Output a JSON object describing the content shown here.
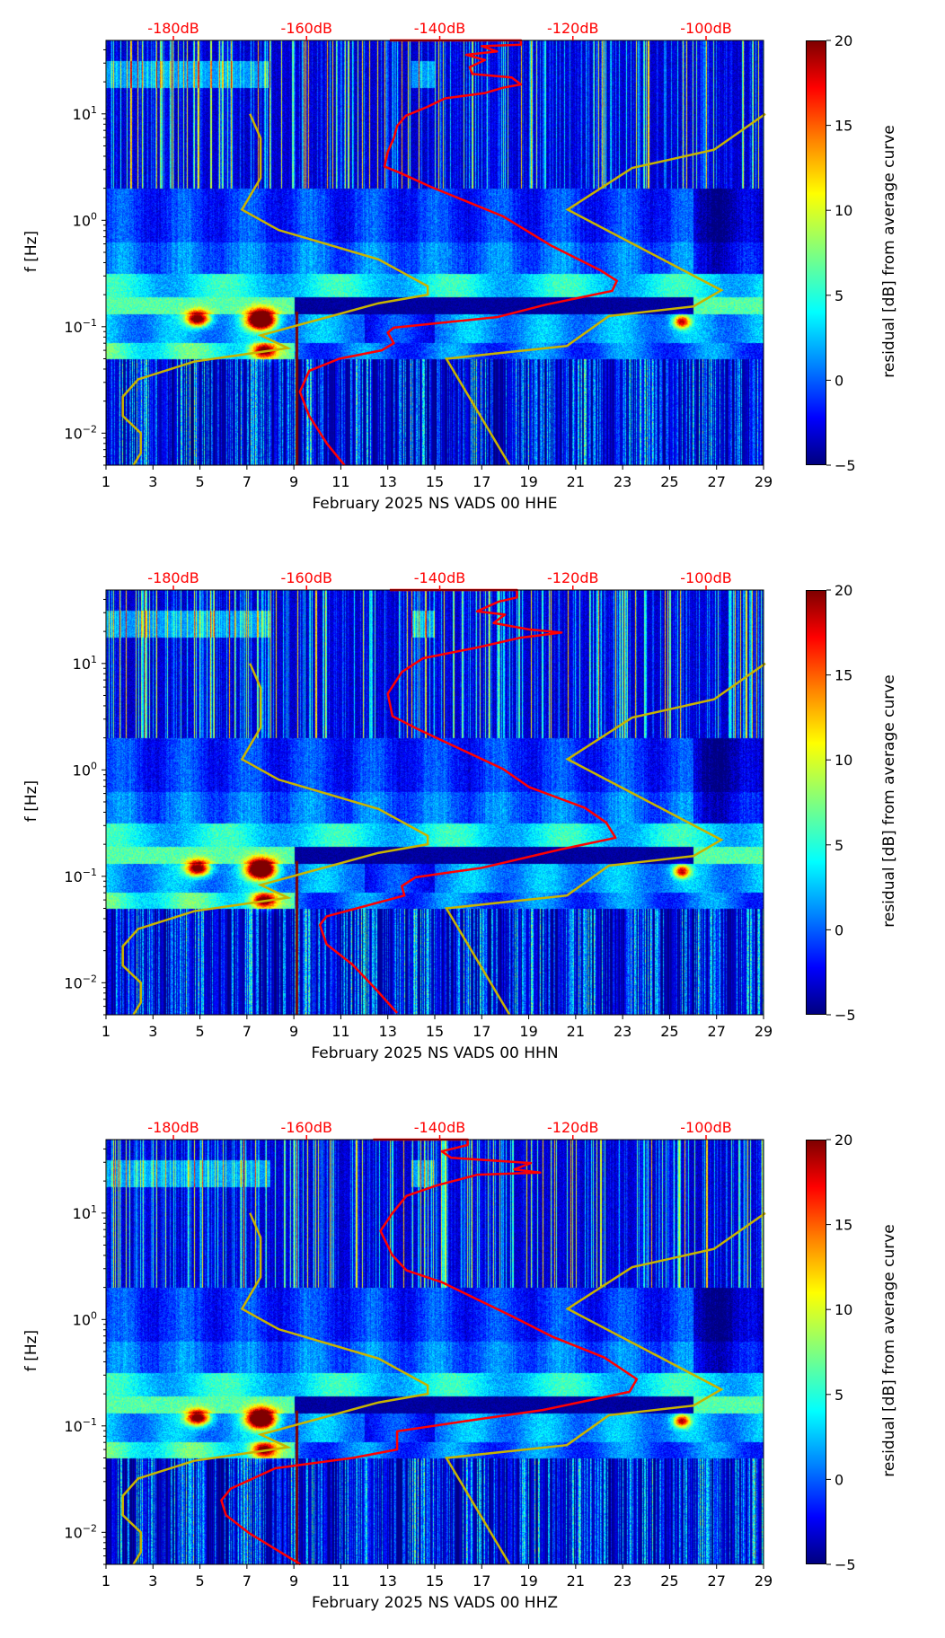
{
  "axes": {
    "ylabel": "f [Hz]",
    "xlim": [
      1,
      29
    ],
    "ylim": [
      0.005,
      49
    ],
    "xticks": [
      "1",
      "3",
      "5",
      "7",
      "9",
      "11",
      "13",
      "15",
      "17",
      "19",
      "21",
      "23",
      "25",
      "27",
      "29"
    ],
    "yticks": [
      {
        "value": 10,
        "base": "10",
        "exp": "1"
      },
      {
        "value": 1,
        "base": "10",
        "exp": "0"
      },
      {
        "value": 0.1,
        "base": "10",
        "exp": "−1"
      },
      {
        "value": 0.01,
        "base": "10",
        "exp": "−2"
      }
    ],
    "top_ticks": [
      {
        "db": -180,
        "label": "-180dB"
      },
      {
        "db": -160,
        "label": "-160dB"
      },
      {
        "db": -140,
        "label": "-140dB"
      },
      {
        "db": -120,
        "label": "-120dB"
      },
      {
        "db": -100,
        "label": "-100dB"
      }
    ]
  },
  "colorbar": {
    "label": "residual [dB] from average curve",
    "range": [
      -5,
      20
    ],
    "ticks": [
      {
        "v": 20,
        "label": "20"
      },
      {
        "v": 15,
        "label": "15"
      },
      {
        "v": 10,
        "label": "10"
      },
      {
        "v": 5,
        "label": "5"
      },
      {
        "v": 0,
        "label": "0"
      },
      {
        "v": -5,
        "label": "−5"
      }
    ]
  },
  "colors": {
    "average_curve": "#ff0000",
    "reference_curves": "#c8b400",
    "top_labels": "#ff0000"
  },
  "chart_data": [
    {
      "type": "heatmap",
      "xlabel": "February 2025 NS VADS 00 HHE",
      "average_curve_db_vs_hz": [
        [
          -147.5,
          49
        ],
        [
          -127.8,
          49
        ],
        [
          -127.8,
          44.7
        ],
        [
          -133.7,
          43.3
        ],
        [
          -131.4,
          38.6
        ],
        [
          -136,
          35.9
        ],
        [
          -133.2,
          32.1
        ],
        [
          -135.5,
          27.5
        ],
        [
          -135.1,
          23.7
        ],
        [
          -129.2,
          22.0
        ],
        [
          -127.8,
          18.9
        ],
        [
          -130.5,
          17.6
        ],
        [
          -133.2,
          15.7
        ],
        [
          -139.2,
          14.0
        ],
        [
          -141.9,
          11.6
        ],
        [
          -145.1,
          9.6
        ],
        [
          -146.4,
          7.7
        ],
        [
          -146.9,
          5.9
        ],
        [
          -147.8,
          4.4
        ],
        [
          -148.3,
          3.2
        ],
        [
          -146,
          2.8
        ],
        [
          -141.4,
          2.07
        ],
        [
          -130.5,
          1.09
        ],
        [
          -123.2,
          0.575
        ],
        [
          -115.9,
          0.34
        ],
        [
          -113.4,
          0.27
        ],
        [
          -114.1,
          0.217
        ],
        [
          -124.1,
          0.161
        ],
        [
          -131.4,
          0.123
        ],
        [
          -146.9,
          0.098
        ],
        [
          -147.8,
          0.088
        ],
        [
          -146.9,
          0.07
        ],
        [
          -148.7,
          0.06
        ],
        [
          -155.1,
          0.05
        ],
        [
          -159.6,
          0.0385
        ],
        [
          -161,
          0.0245
        ],
        [
          -159.6,
          0.0145
        ],
        [
          -156.9,
          0.0079
        ],
        [
          -154.3,
          0.005
        ]
      ]
    },
    {
      "type": "heatmap",
      "xlabel": "February 2025 NS VADS 00 HHN",
      "average_curve_db_vs_hz": [
        [
          -147.5,
          49
        ],
        [
          -128.4,
          49
        ],
        [
          -128.4,
          41.7
        ],
        [
          -131.2,
          38
        ],
        [
          -134.4,
          30.9
        ],
        [
          -130.2,
          28.8
        ],
        [
          -131.9,
          24
        ],
        [
          -126.6,
          20.9
        ],
        [
          -121.7,
          19.5
        ],
        [
          -128,
          17.4
        ],
        [
          -134.4,
          14.1
        ],
        [
          -142.5,
          11.2
        ],
        [
          -145.7,
          8.3
        ],
        [
          -147.8,
          5.2
        ],
        [
          -147.1,
          3.2
        ],
        [
          -143.2,
          2.4
        ],
        [
          -130.5,
          1.02
        ],
        [
          -126.6,
          0.69
        ],
        [
          -118.2,
          0.44
        ],
        [
          -115,
          0.32
        ],
        [
          -113.6,
          0.23
        ],
        [
          -122,
          0.178
        ],
        [
          -133.7,
          0.12
        ],
        [
          -143.6,
          0.098
        ],
        [
          -145.7,
          0.081
        ],
        [
          -145.3,
          0.066
        ],
        [
          -157,
          0.042
        ],
        [
          -158,
          0.035
        ],
        [
          -157,
          0.023
        ],
        [
          -153.1,
          0.0148
        ],
        [
          -149.6,
          0.0087
        ],
        [
          -146.4,
          0.0052
        ]
      ]
    },
    {
      "type": "heatmap",
      "xlabel": "February 2025 NS VADS 00 HHZ",
      "average_curve_db_vs_hz": [
        [
          -150,
          49
        ],
        [
          -135.8,
          49
        ],
        [
          -135.8,
          43.6
        ],
        [
          -139.7,
          38
        ],
        [
          -138.3,
          33.1
        ],
        [
          -126.3,
          29.5
        ],
        [
          -128.8,
          25.7
        ],
        [
          -124.9,
          24
        ],
        [
          -134.4,
          22.9
        ],
        [
          -140.4,
          18.2
        ],
        [
          -145,
          14.5
        ],
        [
          -147.1,
          10
        ],
        [
          -148.9,
          6.8
        ],
        [
          -147.1,
          4
        ],
        [
          -145,
          2.9
        ],
        [
          -139.7,
          2.24
        ],
        [
          -129.1,
          1.07
        ],
        [
          -123.1,
          0.69
        ],
        [
          -115.3,
          0.44
        ],
        [
          -110.4,
          0.275
        ],
        [
          -111.5,
          0.209
        ],
        [
          -124.5,
          0.141
        ],
        [
          -136.5,
          0.11
        ],
        [
          -146.4,
          0.089
        ],
        [
          -146.4,
          0.06
        ],
        [
          -153.1,
          0.05
        ],
        [
          -164.7,
          0.04
        ],
        [
          -171.4,
          0.0257
        ],
        [
          -172.8,
          0.02
        ],
        [
          -172.1,
          0.0145
        ],
        [
          -168.6,
          0.0098
        ],
        [
          -160.9,
          0.005
        ]
      ]
    }
  ],
  "reference_curves": {
    "low_noise_model_db_vs_hz": [
      [
        -168.5,
        10
      ],
      [
        -166.9,
        5.9
      ],
      [
        -166.9,
        2.5
      ],
      [
        -169.7,
        1.26
      ],
      [
        -164.2,
        0.81
      ],
      [
        -149.2,
        0.43
      ],
      [
        -141.8,
        0.24
      ],
      [
        -141.8,
        0.2
      ],
      [
        -149.2,
        0.166
      ],
      [
        -166.9,
        0.083
      ],
      [
        -162.8,
        0.063
      ],
      [
        -176.9,
        0.047
      ],
      [
        -185.3,
        0.032
      ],
      [
        -187.6,
        0.022
      ],
      [
        -187.6,
        0.0145
      ],
      [
        -184.9,
        0.01
      ],
      [
        -184.9,
        0.0065
      ],
      [
        -186,
        0.005
      ]
    ],
    "high_noise_model_db_vs_hz": [
      [
        -91.1,
        10
      ],
      [
        -98.8,
        4.6
      ],
      [
        -111.1,
        3.1
      ],
      [
        -120.8,
        1.26
      ],
      [
        -97.7,
        0.22
      ],
      [
        -101.9,
        0.155
      ],
      [
        -114.6,
        0.126
      ],
      [
        -120.9,
        0.066
      ],
      [
        -139,
        0.05
      ],
      [
        -129.5,
        0.005
      ]
    ]
  }
}
